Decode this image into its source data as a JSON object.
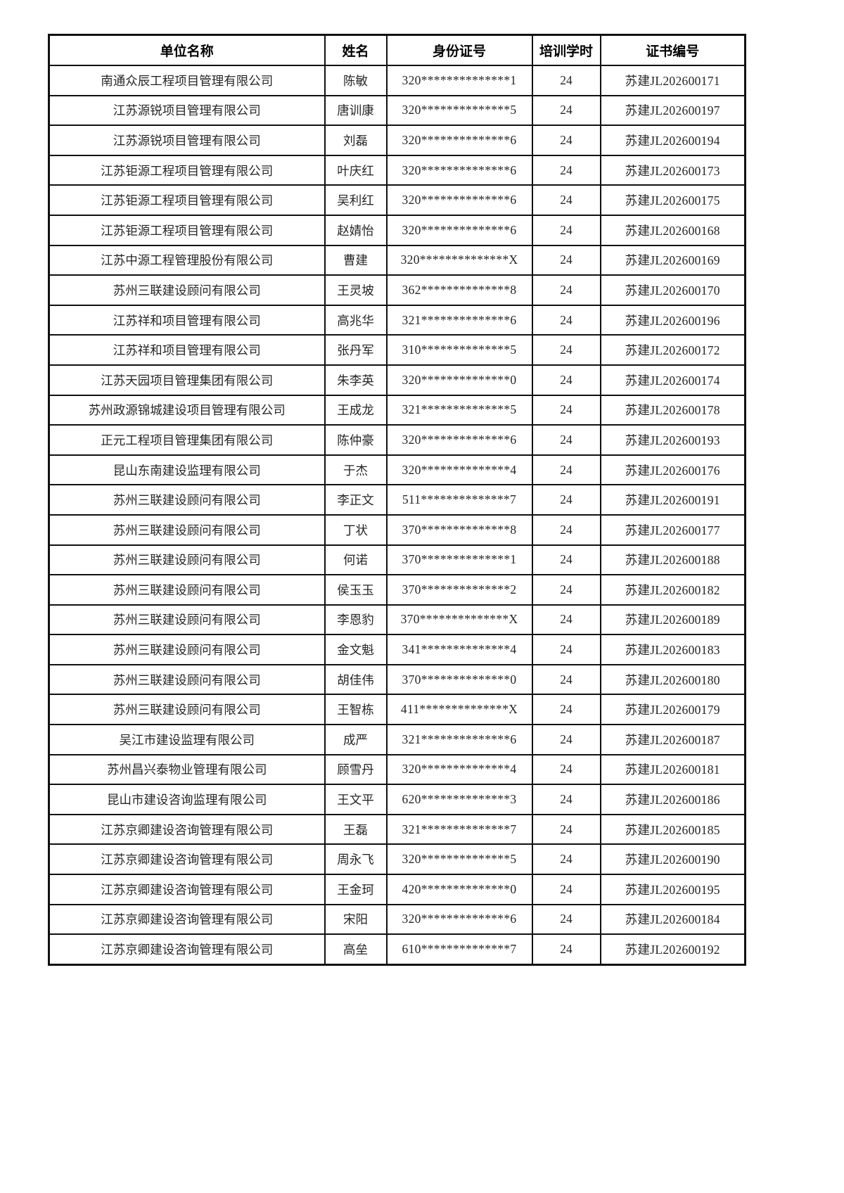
{
  "page": {
    "background_color": "#ffffff",
    "border_color": "#111111",
    "header_text_color": "#000000",
    "body_text_color": "#262626"
  },
  "table": {
    "columns": {
      "company": "单位名称",
      "name": "姓名",
      "id_number": "身份证号",
      "hours": "培训学时",
      "cert_no": "证书编号"
    },
    "rows": [
      {
        "company": "南通众辰工程项目管理有限公司",
        "name": "陈敏",
        "id_number": "320**************1",
        "hours": "24",
        "cert_no": "苏建JL202600171"
      },
      {
        "company": "江苏源锐项目管理有限公司",
        "name": "唐训康",
        "id_number": "320**************5",
        "hours": "24",
        "cert_no": "苏建JL202600197"
      },
      {
        "company": "江苏源锐项目管理有限公司",
        "name": "刘磊",
        "id_number": "320**************6",
        "hours": "24",
        "cert_no": "苏建JL202600194"
      },
      {
        "company": "江苏钜源工程项目管理有限公司",
        "name": "叶庆红",
        "id_number": "320**************6",
        "hours": "24",
        "cert_no": "苏建JL202600173"
      },
      {
        "company": "江苏钜源工程项目管理有限公司",
        "name": "吴利红",
        "id_number": "320**************6",
        "hours": "24",
        "cert_no": "苏建JL202600175"
      },
      {
        "company": "江苏钜源工程项目管理有限公司",
        "name": "赵婧怡",
        "id_number": "320**************6",
        "hours": "24",
        "cert_no": "苏建JL202600168"
      },
      {
        "company": "江苏中源工程管理股份有限公司",
        "name": "曹建",
        "id_number": "320**************X",
        "hours": "24",
        "cert_no": "苏建JL202600169"
      },
      {
        "company": "苏州三联建设顾问有限公司",
        "name": "王灵坡",
        "id_number": "362**************8",
        "hours": "24",
        "cert_no": "苏建JL202600170"
      },
      {
        "company": "江苏祥和项目管理有限公司",
        "name": "高兆华",
        "id_number": "321**************6",
        "hours": "24",
        "cert_no": "苏建JL202600196"
      },
      {
        "company": "江苏祥和项目管理有限公司",
        "name": "张丹军",
        "id_number": "310**************5",
        "hours": "24",
        "cert_no": "苏建JL202600172"
      },
      {
        "company": "江苏天园项目管理集团有限公司",
        "name": "朱李英",
        "id_number": "320**************0",
        "hours": "24",
        "cert_no": "苏建JL202600174"
      },
      {
        "company": "苏州政源锦城建设项目管理有限公司",
        "name": "王成龙",
        "id_number": "321**************5",
        "hours": "24",
        "cert_no": "苏建JL202600178"
      },
      {
        "company": "正元工程项目管理集团有限公司",
        "name": "陈仲豪",
        "id_number": "320**************6",
        "hours": "24",
        "cert_no": "苏建JL202600193"
      },
      {
        "company": "昆山东南建设监理有限公司",
        "name": "于杰",
        "id_number": "320**************4",
        "hours": "24",
        "cert_no": "苏建JL202600176"
      },
      {
        "company": "苏州三联建设顾问有限公司",
        "name": "李正文",
        "id_number": "511**************7",
        "hours": "24",
        "cert_no": "苏建JL202600191"
      },
      {
        "company": "苏州三联建设顾问有限公司",
        "name": "丁状",
        "id_number": "370**************8",
        "hours": "24",
        "cert_no": "苏建JL202600177"
      },
      {
        "company": "苏州三联建设顾问有限公司",
        "name": "何诺",
        "id_number": "370**************1",
        "hours": "24",
        "cert_no": "苏建JL202600188"
      },
      {
        "company": "苏州三联建设顾问有限公司",
        "name": "侯玉玉",
        "id_number": "370**************2",
        "hours": "24",
        "cert_no": "苏建JL202600182"
      },
      {
        "company": "苏州三联建设顾问有限公司",
        "name": "李恩豹",
        "id_number": "370**************X",
        "hours": "24",
        "cert_no": "苏建JL202600189"
      },
      {
        "company": "苏州三联建设顾问有限公司",
        "name": "金文魁",
        "id_number": "341**************4",
        "hours": "24",
        "cert_no": "苏建JL202600183"
      },
      {
        "company": "苏州三联建设顾问有限公司",
        "name": "胡佳伟",
        "id_number": "370**************0",
        "hours": "24",
        "cert_no": "苏建JL202600180"
      },
      {
        "company": "苏州三联建设顾问有限公司",
        "name": "王智栋",
        "id_number": "411**************X",
        "hours": "24",
        "cert_no": "苏建JL202600179"
      },
      {
        "company": "吴江市建设监理有限公司",
        "name": "成严",
        "id_number": "321**************6",
        "hours": "24",
        "cert_no": "苏建JL202600187"
      },
      {
        "company": "苏州昌兴泰物业管理有限公司",
        "name": "顾雪丹",
        "id_number": "320**************4",
        "hours": "24",
        "cert_no": "苏建JL202600181"
      },
      {
        "company": "昆山市建设咨询监理有限公司",
        "name": "王文平",
        "id_number": "620**************3",
        "hours": "24",
        "cert_no": "苏建JL202600186"
      },
      {
        "company": "江苏京卿建设咨询管理有限公司",
        "name": "王磊",
        "id_number": "321**************7",
        "hours": "24",
        "cert_no": "苏建JL202600185"
      },
      {
        "company": "江苏京卿建设咨询管理有限公司",
        "name": "周永飞",
        "id_number": "320**************5",
        "hours": "24",
        "cert_no": "苏建JL202600190"
      },
      {
        "company": "江苏京卿建设咨询管理有限公司",
        "name": "王金珂",
        "id_number": "420**************0",
        "hours": "24",
        "cert_no": "苏建JL202600195"
      },
      {
        "company": "江苏京卿建设咨询管理有限公司",
        "name": "宋阳",
        "id_number": "320**************6",
        "hours": "24",
        "cert_no": "苏建JL202600184"
      },
      {
        "company": "江苏京卿建设咨询管理有限公司",
        "name": "高垒",
        "id_number": "610**************7",
        "hours": "24",
        "cert_no": "苏建JL202600192"
      }
    ]
  }
}
